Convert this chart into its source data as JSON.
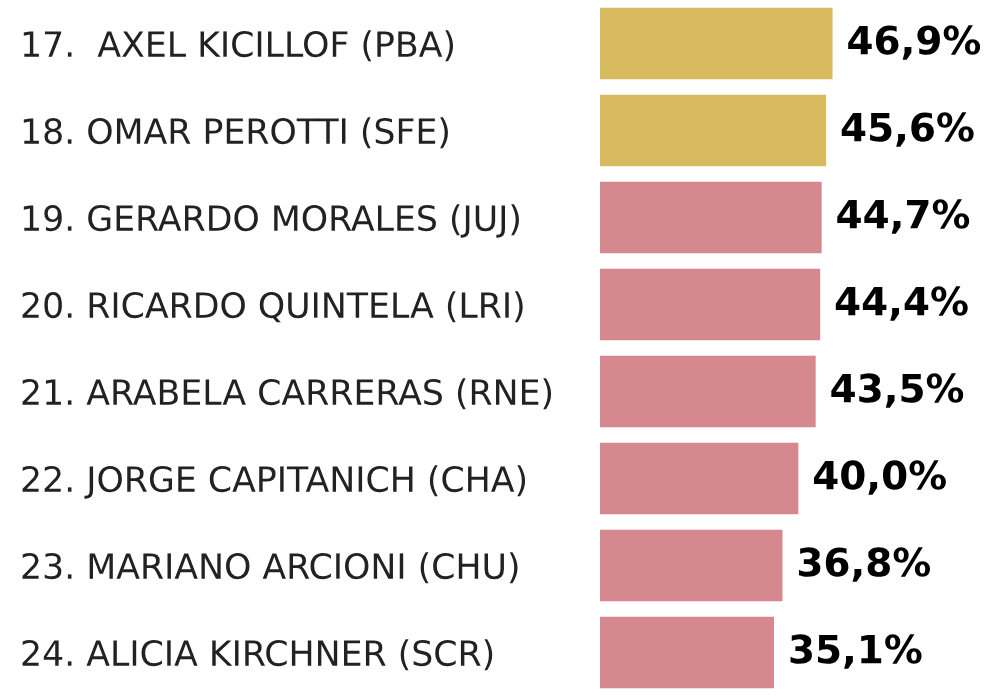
{
  "chart_data": {
    "type": "bar",
    "orientation": "horizontal",
    "categories": [
      "17.  AXEL KICILLOF (PBA)",
      "18. OMAR PEROTTI (SFE)",
      "19. GERARDO MORALES (JUJ)",
      "20. RICARDO QUINTELA (LRI)",
      "21. ARABELA CARRERAS (RNE)",
      "22. JORGE CAPITANICH (CHA)",
      "23. MARIANO ARCIONI (CHU)",
      "24. ALICIA KIRCHNER (SCR)"
    ],
    "values": [
      46.9,
      45.6,
      44.7,
      44.4,
      43.5,
      40.0,
      36.8,
      35.1
    ],
    "colors": [
      "#d9bb5f",
      "#d9bb5f",
      "#d5898e",
      "#d5898e",
      "#d5898e",
      "#d5898e",
      "#d5898e",
      "#d5898e"
    ],
    "value_labels": [
      "46,9%",
      "45,6%",
      "44,7%",
      "44,4%",
      "43,5%",
      "40,0%",
      "36,8%",
      "35,1%"
    ],
    "tick_labels": "y",
    "grid": false,
    "legend": false
  }
}
